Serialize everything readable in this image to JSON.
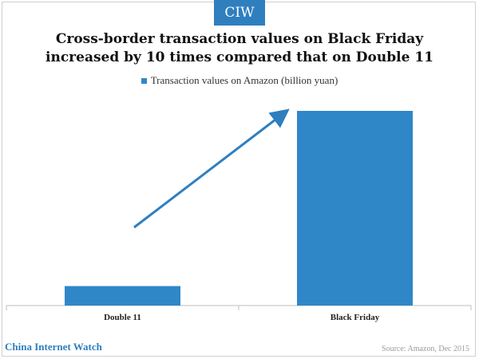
{
  "logo": "CIW",
  "brand": "China Internet Watch",
  "source": "Source: Amazon, Dec 2015",
  "colors": {
    "bar": "#2f87c8",
    "accent": "#2f7fbf",
    "axis": "#bfbfbf"
  },
  "chart_data": {
    "type": "bar",
    "title_lines": [
      "Cross-border transaction values on Black Friday",
      "increased by 10 times compared that on Double 11"
    ],
    "categories": [
      "Double 11",
      "Black Friday"
    ],
    "series": [
      {
        "name": "Transaction values on Amazon (billion yuan)",
        "values": [
          1,
          10
        ]
      }
    ],
    "legend_position": "top",
    "grid": false,
    "annotation": "upward-trend-arrow"
  }
}
